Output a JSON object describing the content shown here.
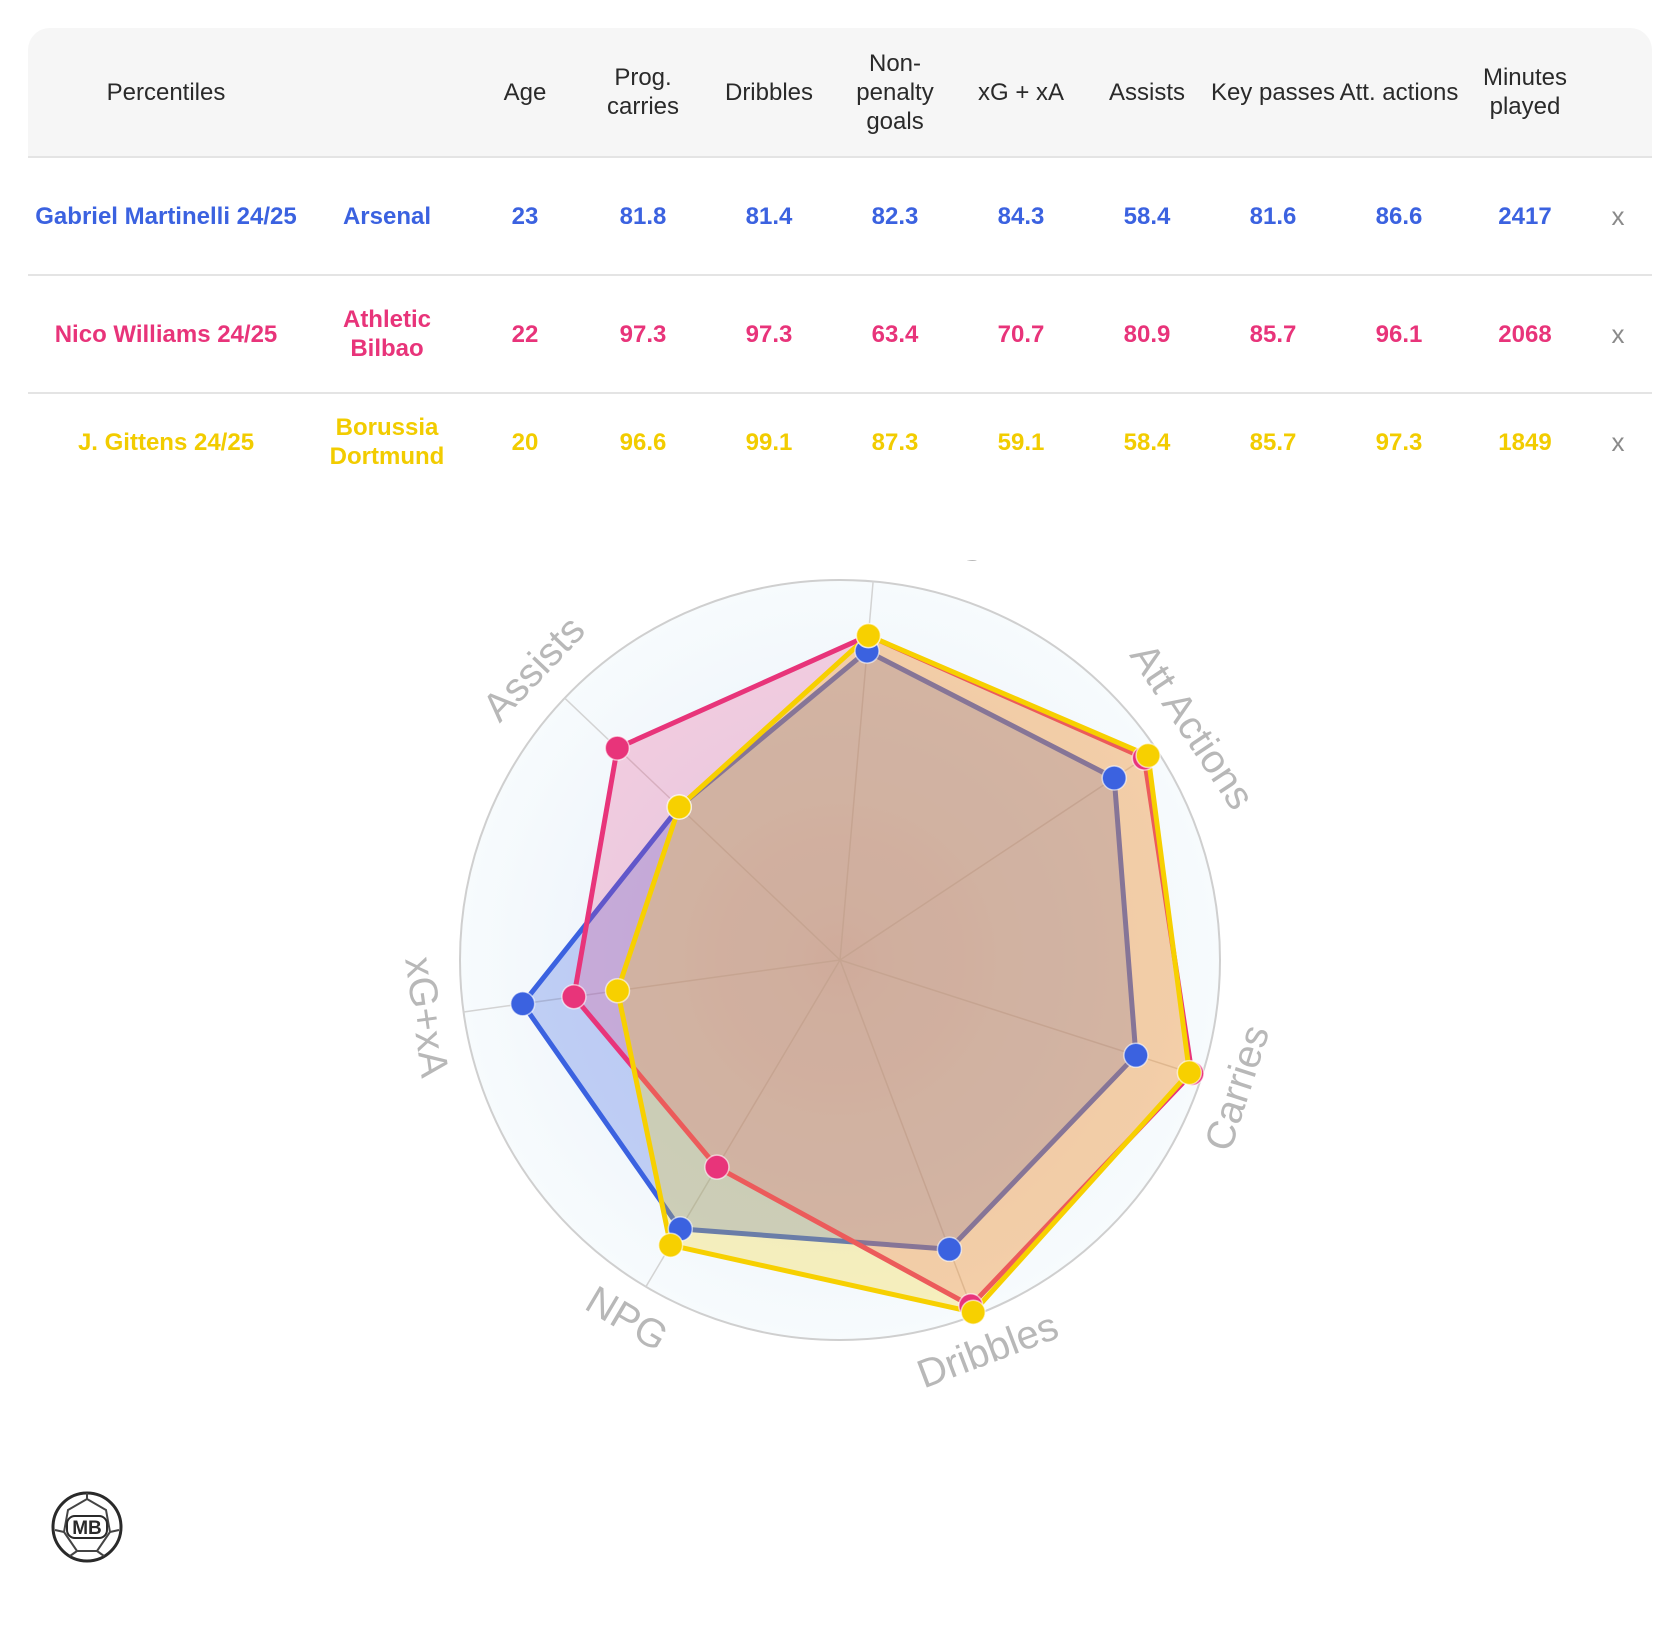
{
  "table": {
    "headers": {
      "percentiles": "Percentiles",
      "club": "",
      "age": "Age",
      "prog_carries": "Prog. carries",
      "dribbles": "Dribbles",
      "npg": "Non-penalty goals",
      "xg_xa": "xG + xA",
      "assists": "Assists",
      "key_passes": "Key passes",
      "att_actions": "Att. actions",
      "minutes": "Minutes played"
    },
    "rows": [
      {
        "player": "Gabriel Martinelli 24/25",
        "club": "Arsenal",
        "age": "23",
        "prog_carries": "81.8",
        "dribbles": "81.4",
        "npg": "82.3",
        "xg_xa": "84.3",
        "assists": "58.4",
        "key_passes": "81.6",
        "att_actions": "86.6",
        "minutes": "2417",
        "remove": "x"
      },
      {
        "player": "Nico Williams 24/25",
        "club": "Athletic Bilbao",
        "age": "22",
        "prog_carries": "97.3",
        "dribbles": "97.3",
        "npg": "63.4",
        "xg_xa": "70.7",
        "assists": "80.9",
        "key_passes": "85.7",
        "att_actions": "96.1",
        "minutes": "2068",
        "remove": "x"
      },
      {
        "player": "J. Gittens 24/25",
        "club": "Borussia Dortmund",
        "age": "20",
        "prog_carries": "96.6",
        "dribbles": "99.1",
        "npg": "87.3",
        "xg_xa": "59.1",
        "assists": "58.4",
        "key_passes": "85.7",
        "att_actions": "97.3",
        "minutes": "1849",
        "remove": "x"
      }
    ]
  },
  "chart_data": {
    "type": "radar",
    "axes": [
      "Key Passes",
      "Att Actions",
      "Carries",
      "Dribbles",
      "NPG",
      "xG+xA",
      "Assists"
    ],
    "range": [
      0,
      100
    ],
    "series": [
      {
        "name": "Gabriel Martinelli 24/25",
        "color": "#3b62e0",
        "fill": "rgba(59,98,224,0.28)",
        "values": [
          81.6,
          86.6,
          81.8,
          81.4,
          82.3,
          84.3,
          58.4
        ]
      },
      {
        "name": "Nico Williams 24/25",
        "color": "#e8347a",
        "fill": "rgba(232,52,122,0.22)",
        "values": [
          85.7,
          96.1,
          97.3,
          97.3,
          63.4,
          70.7,
          80.9
        ]
      },
      {
        "name": "J. Gittens 24/25",
        "color": "#f7d000",
        "fill": "rgba(247,208,0,0.25)",
        "values": [
          85.7,
          97.3,
          96.6,
          99.1,
          87.3,
          59.1,
          58.4
        ]
      }
    ]
  },
  "logo": {
    "text": "MB",
    "icon": "mb-logo-icon"
  }
}
